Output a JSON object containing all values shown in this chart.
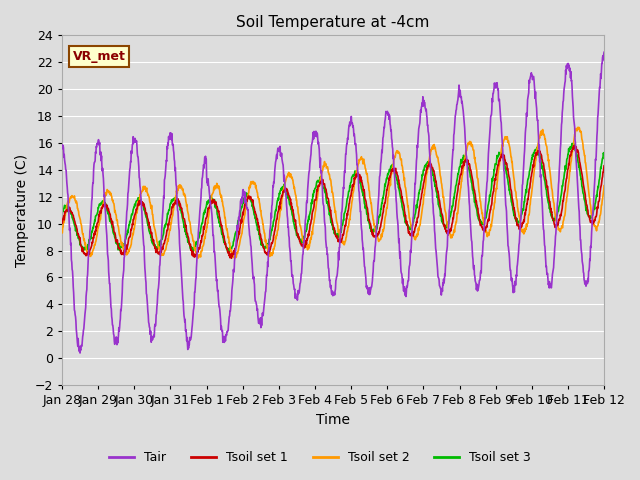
{
  "title": "Soil Temperature at -4cm",
  "xlabel": "Time",
  "ylabel": "Temperature (C)",
  "ylim": [
    -2,
    24
  ],
  "annotation": "VR_met",
  "series_colors": {
    "Tair": "#9933cc",
    "Tsoil1": "#cc0000",
    "Tsoil2": "#ff9900",
    "Tsoil3": "#00bb00"
  },
  "legend_labels": [
    "Tair",
    "Tsoil set 1",
    "Tsoil set 2",
    "Tsoil set 3"
  ],
  "bg_color": "#dddddd",
  "grid_color": "#ffffff",
  "tick_labels": [
    "Jan 28",
    "Jan 29",
    "Jan 30",
    "Jan 31",
    "Feb 1",
    "Feb 2",
    "Feb 3",
    "Feb 4",
    "Feb 5",
    "Feb 6",
    "Feb 7",
    "Feb 8",
    "Feb 9",
    "Feb 10",
    "Feb 11",
    "Feb 12"
  ],
  "tick_positions": [
    0,
    1,
    2,
    3,
    4,
    5,
    6,
    7,
    8,
    9,
    10,
    11,
    12,
    13,
    14,
    15
  ],
  "yticks": [
    -2,
    0,
    2,
    4,
    6,
    8,
    10,
    12,
    14,
    16,
    18,
    20,
    22,
    24
  ]
}
